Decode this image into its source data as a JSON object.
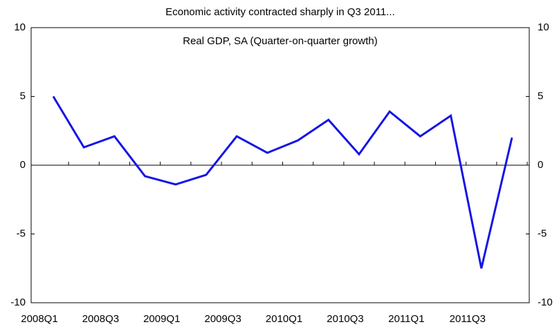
{
  "chart_data": {
    "type": "line",
    "title": "Economic activity contracted sharply in  Q3 2011...",
    "subtitle": "Real GDP, SA (Quarter-on-quarter growth)",
    "categories": [
      "2008Q1",
      null,
      "2008Q3",
      null,
      "2009Q1",
      null,
      "2009Q3",
      null,
      "2010Q1",
      null,
      "2010Q3",
      null,
      "2011Q1",
      null,
      "2011Q3",
      null
    ],
    "series": [
      {
        "color": "#1414e6",
        "values": [
          5.0,
          1.3,
          2.1,
          -0.8,
          -1.4,
          -0.7,
          2.1,
          0.9,
          1.8,
          3.3,
          0.8,
          3.9,
          2.1,
          3.6,
          -7.5,
          2.0
        ]
      }
    ],
    "ylim": [
      -10,
      10
    ],
    "yticks": [
      -10,
      -5,
      0,
      5,
      10
    ],
    "y2lim": [
      -10,
      10
    ],
    "y2ticks": [
      -10,
      -5,
      0,
      5,
      10
    ]
  }
}
